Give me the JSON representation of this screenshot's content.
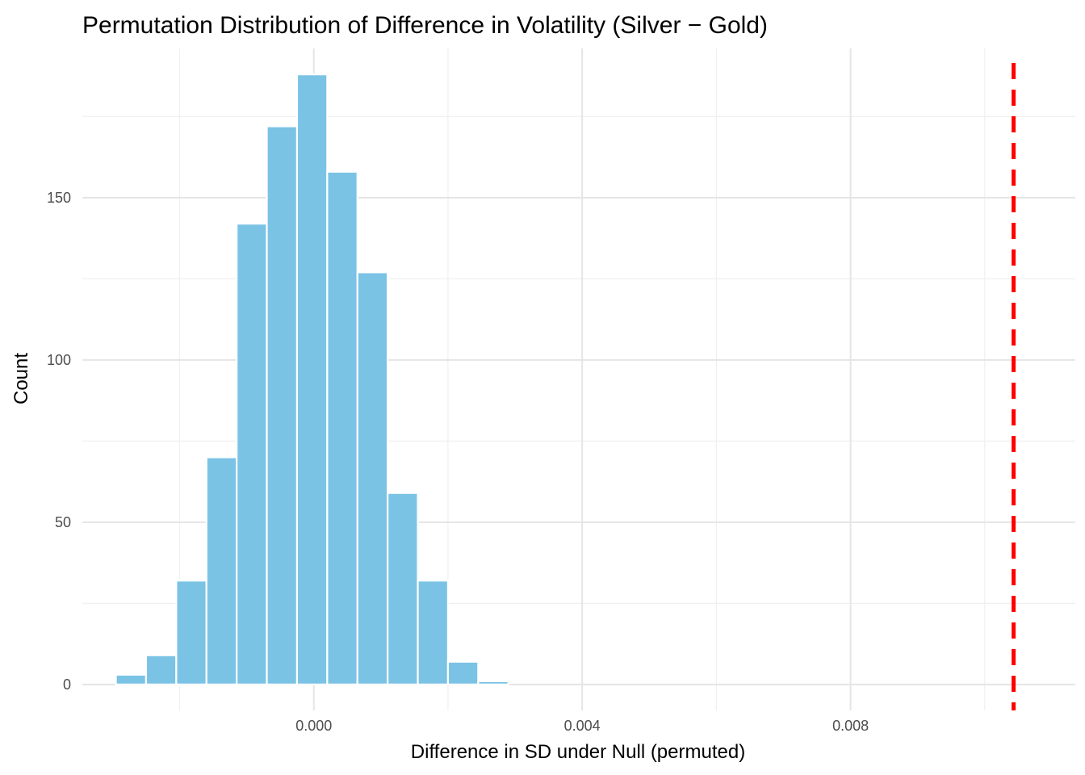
{
  "chart_data": {
    "type": "bar",
    "subtype": "histogram",
    "title": "Permutation Distribution of Difference in Volatility (Silver − Gold)",
    "xlabel": "Difference in SD under Null (permuted)",
    "ylabel": "Count",
    "xlim": [
      -0.00345,
      0.01135
    ],
    "ylim": [
      -8,
      196
    ],
    "x_ticks": [
      {
        "value": 0.0,
        "label": "0.000"
      },
      {
        "value": 0.004,
        "label": "0.004"
      },
      {
        "value": 0.008,
        "label": "0.008"
      }
    ],
    "x_minor_gridlines": [
      -0.002,
      0.002,
      0.006,
      0.01
    ],
    "y_ticks": [
      {
        "value": 0,
        "label": "0"
      },
      {
        "value": 50,
        "label": "50"
      },
      {
        "value": 100,
        "label": "100"
      },
      {
        "value": 150,
        "label": "150"
      }
    ],
    "y_minor_gridlines": [
      25,
      75,
      125,
      175
    ],
    "bins": [
      {
        "x0": -0.00295,
        "x1": -0.0025,
        "count": 3
      },
      {
        "x0": -0.0025,
        "x1": -0.00205,
        "count": 9
      },
      {
        "x0": -0.00205,
        "x1": -0.0016,
        "count": 32
      },
      {
        "x0": -0.0016,
        "x1": -0.00115,
        "count": 70
      },
      {
        "x0": -0.00115,
        "x1": -0.0007,
        "count": 142
      },
      {
        "x0": -0.0007,
        "x1": -0.00025,
        "count": 172
      },
      {
        "x0": -0.00025,
        "x1": 0.0002,
        "count": 188
      },
      {
        "x0": 0.0002,
        "x1": 0.00065,
        "count": 158
      },
      {
        "x0": 0.00065,
        "x1": 0.0011,
        "count": 127
      },
      {
        "x0": 0.0011,
        "x1": 0.00155,
        "count": 59
      },
      {
        "x0": 0.00155,
        "x1": 0.002,
        "count": 32
      },
      {
        "x0": 0.002,
        "x1": 0.00245,
        "count": 7
      },
      {
        "x0": 0.00245,
        "x1": 0.0029,
        "count": 1
      },
      {
        "x0": 0.0029,
        "x1": 0.00335,
        "count": 0
      },
      {
        "x0": 0.00335,
        "x1": 0.0038,
        "count": 0
      },
      {
        "x0": 0.0038,
        "x1": 0.00425,
        "count": 0
      },
      {
        "x0": 0.00425,
        "x1": 0.0047,
        "count": 0
      },
      {
        "x0": 0.0047,
        "x1": 0.00515,
        "count": 0
      },
      {
        "x0": 0.00515,
        "x1": 0.0056,
        "count": 0
      },
      {
        "x0": 0.0056,
        "x1": 0.00605,
        "count": 0
      },
      {
        "x0": 0.00605,
        "x1": 0.0065,
        "count": 0
      },
      {
        "x0": 0.0065,
        "x1": 0.00695,
        "count": 0
      },
      {
        "x0": 0.00695,
        "x1": 0.0074,
        "count": 0
      },
      {
        "x0": 0.0074,
        "x1": 0.00785,
        "count": 0
      },
      {
        "x0": 0.00785,
        "x1": 0.0083,
        "count": 0
      },
      {
        "x0": 0.0083,
        "x1": 0.00875,
        "count": 0
      },
      {
        "x0": 0.00875,
        "x1": 0.0092,
        "count": 0
      },
      {
        "x0": 0.0092,
        "x1": 0.00965,
        "count": 0
      },
      {
        "x0": 0.00965,
        "x1": 0.0101,
        "count": 0
      },
      {
        "x0": 0.0101,
        "x1": 0.01055,
        "count": 0
      },
      {
        "x0": 0.01055,
        "x1": 0.011,
        "count": 0
      }
    ],
    "observed_line": {
      "value": 0.01043,
      "color": "#ff0000",
      "style": "dashed"
    },
    "colors": {
      "bar_fill": "#7ac3e5",
      "bar_outline": "#ffffff",
      "grid_major": "#e5e5e5",
      "grid_minor": "#f0f0f0",
      "background": "#ffffff"
    },
    "grid": true,
    "legend": "none"
  }
}
